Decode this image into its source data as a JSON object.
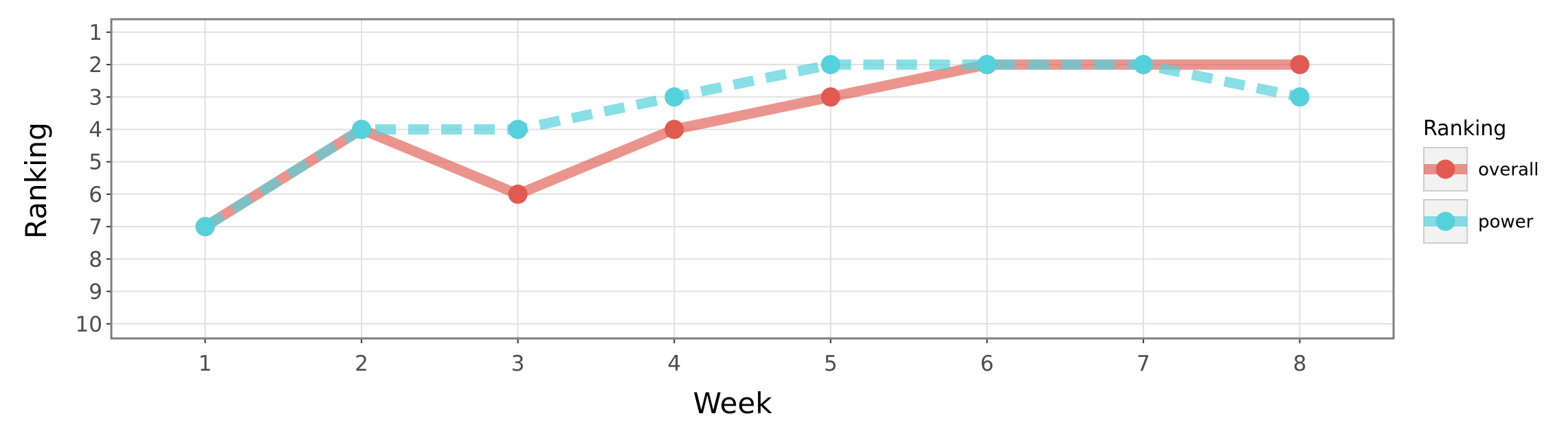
{
  "chart_data": {
    "type": "line",
    "xlabel": "Week",
    "ylabel": "Ranking",
    "x": [
      1,
      2,
      3,
      4,
      5,
      6,
      7,
      8
    ],
    "xlim": [
      0.4,
      8.6
    ],
    "ylim": [
      10.45,
      0.6
    ],
    "y_reversed": true,
    "x_ticks": [
      "1",
      "2",
      "3",
      "4",
      "5",
      "6",
      "7",
      "8"
    ],
    "y_ticks": [
      "1",
      "2",
      "3",
      "4",
      "5",
      "6",
      "7",
      "8",
      "9",
      "10"
    ],
    "grid": true,
    "legend_title": "Ranking",
    "legend_position": "right",
    "series": [
      {
        "name": "overall",
        "values": [
          7,
          4,
          6,
          4,
          3,
          2,
          2,
          2
        ],
        "color": "#e05a52",
        "line_style": "solid"
      },
      {
        "name": "power",
        "values": [
          7,
          4,
          4,
          3,
          2,
          2,
          2,
          3
        ],
        "color": "#55d1dc",
        "line_style": "dashed"
      }
    ]
  }
}
